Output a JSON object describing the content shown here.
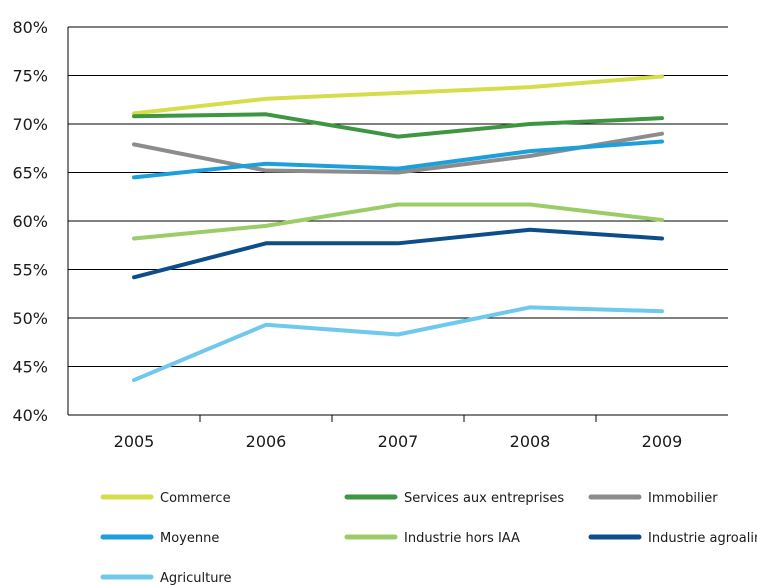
{
  "chart_data": {
    "type": "line",
    "title": "",
    "xlabel": "",
    "ylabel": "",
    "categories": [
      "2005",
      "2006",
      "2007",
      "2008",
      "2009"
    ],
    "ylim": [
      0.4,
      0.8
    ],
    "yticks": [
      0.4,
      0.45,
      0.5,
      0.55,
      0.6,
      0.65,
      0.7,
      0.75,
      0.8
    ],
    "ytick_labels": [
      "40%",
      "45%",
      "50%",
      "55%",
      "60%",
      "65%",
      "70%",
      "75%",
      "80%"
    ],
    "grid": "horizontal",
    "legend_position": "bottom",
    "series": [
      {
        "name": "Commerce",
        "color": "#d5dd4a",
        "values": [
          0.711,
          0.726,
          0.732,
          0.738,
          0.749
        ]
      },
      {
        "name": "Services aux entreprises",
        "color": "#3f9642",
        "values": [
          0.708,
          0.71,
          0.687,
          0.7,
          0.706
        ]
      },
      {
        "name": "Immobilier",
        "color": "#8c8c8c",
        "values": [
          0.679,
          0.652,
          0.65,
          0.667,
          0.69
        ]
      },
      {
        "name": "Moyenne",
        "color": "#1d9fdc",
        "values": [
          0.645,
          0.659,
          0.654,
          0.672,
          0.682
        ]
      },
      {
        "name": "Industrie hors IAA",
        "color": "#9ccc68",
        "values": [
          0.582,
          0.595,
          0.617,
          0.617,
          0.601
        ]
      },
      {
        "name": "Industrie agroalimentaire",
        "color": "#0c4d8a",
        "values": [
          0.542,
          0.577,
          0.577,
          0.591,
          0.582
        ]
      },
      {
        "name": "Agriculture",
        "color": "#6ec9ec",
        "values": [
          0.436,
          0.493,
          0.483,
          0.511,
          0.507
        ]
      }
    ]
  }
}
